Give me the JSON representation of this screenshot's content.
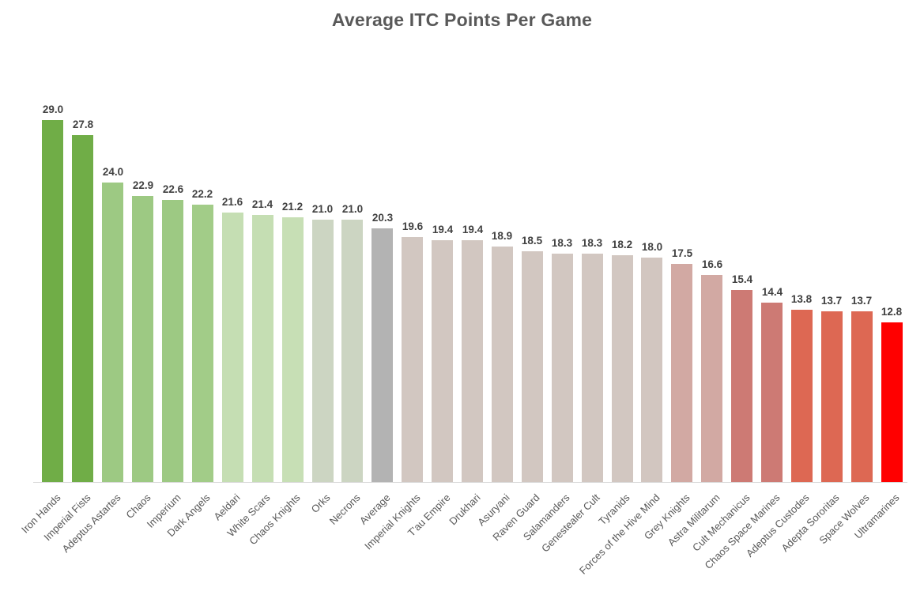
{
  "chart_data": {
    "type": "bar",
    "title": "Average ITC Points Per Game",
    "categories": [
      "Iron Hands",
      "Imperial Fists",
      "Adeptus Astartes",
      "Chaos",
      "Imperium",
      "Dark Angels",
      "Aeldari",
      "White Scars",
      "Chaos Knights",
      "Orks",
      "Necrons",
      "Average",
      "Imperial Knights",
      "T'au Empire",
      "Drukhari",
      "Asuryani",
      "Raven Guard",
      "Salamanders",
      "Genestealer Cult",
      "Tyranids",
      "Forces of the Hive Mind",
      "Grey Knights",
      "Astra Militarum",
      "Cult Mechanicus",
      "Chaos Space Marines",
      "Adeptus Custodes",
      "Adepta Sororitas",
      "Space Wolves",
      "Ultramarines"
    ],
    "values": [
      29.0,
      27.8,
      24.0,
      22.9,
      22.6,
      22.2,
      21.6,
      21.4,
      21.2,
      21.0,
      21.0,
      20.3,
      19.6,
      19.4,
      19.4,
      18.9,
      18.5,
      18.3,
      18.3,
      18.2,
      18.0,
      17.5,
      16.6,
      15.4,
      14.4,
      13.8,
      13.7,
      13.7,
      12.8
    ],
    "value_label_format": "one-decimal",
    "bar_colors": [
      "#70ad47",
      "#70ad47",
      "#9dc983",
      "#9dc983",
      "#9dc983",
      "#a2cc88",
      "#c5deb3",
      "#c5deb3",
      "#c7dfb5",
      "#ccd5c2",
      "#ccd5c2",
      "#b3b3b3",
      "#d2c7c1",
      "#d2c7c1",
      "#d2c7c1",
      "#d2c7c1",
      "#d2c7c1",
      "#d2c7c1",
      "#d2c7c1",
      "#d2c7c1",
      "#d2c6c0",
      "#d2a9a3",
      "#d2a9a3",
      "#cd7a74",
      "#cd7a74",
      "#dd6853",
      "#dd6853",
      "#dd6853",
      "#ff0000"
    ],
    "ylim": [
      0,
      30
    ],
    "grid": false,
    "legend": "none",
    "xlabel": "",
    "ylabel": "",
    "x_tick_rotation_deg": 45,
    "title_color": "#595959",
    "value_label_color": "#404040",
    "x_tick_label_color": "#595959",
    "axis_line_color": "#d9d9d9"
  }
}
